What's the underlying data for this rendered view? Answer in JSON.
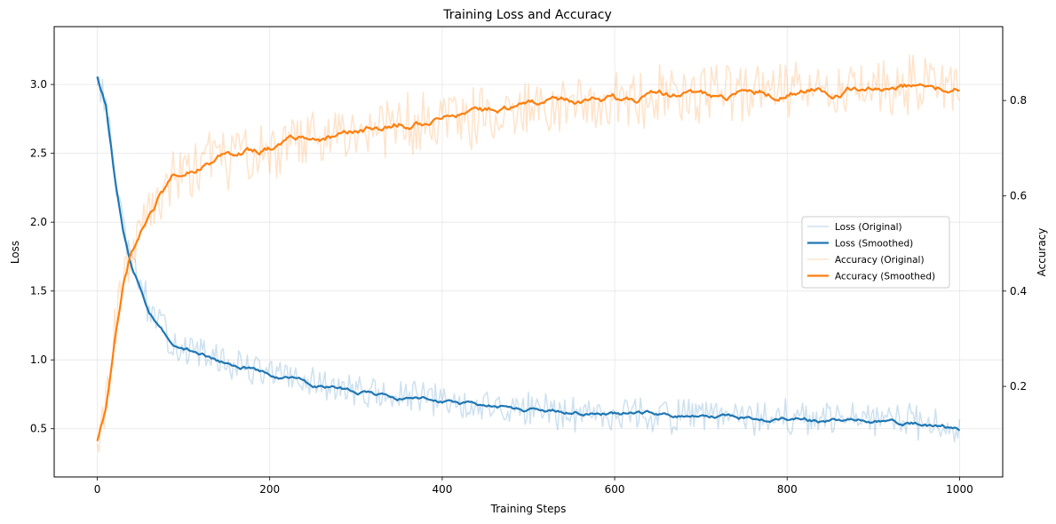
{
  "chart_data": {
    "type": "line",
    "title": "Training Loss and Accuracy",
    "xlabel": "Training Steps",
    "ylabel_left": "Loss",
    "ylabel_right": "Accuracy",
    "xlim": [
      -50,
      1050
    ],
    "ylim_left": [
      0.15,
      3.42
    ],
    "ylim_right": [
      0.01,
      0.955
    ],
    "x_ticks": [
      0,
      200,
      400,
      600,
      800,
      1000
    ],
    "y_ticks_left": [
      0.5,
      1.0,
      1.5,
      2.0,
      2.5,
      3.0
    ],
    "y_ticks_right": [
      0.2,
      0.4,
      0.6,
      0.8
    ],
    "grid": true,
    "legend_position": "center-right",
    "colors": {
      "loss": "#1f77b4",
      "accuracy": "#ff7f0e"
    },
    "series": [
      {
        "name": "Loss (Original)",
        "axis": "left",
        "style": "raw",
        "noise": 0.09,
        "x": [
          0,
          10,
          20,
          30,
          40,
          50,
          60,
          70,
          80,
          90,
          100,
          120,
          140,
          160,
          180,
          200,
          250,
          300,
          350,
          400,
          450,
          500,
          550,
          600,
          650,
          700,
          750,
          800,
          850,
          900,
          950,
          1000
        ],
        "y": [
          3.05,
          2.85,
          2.35,
          1.95,
          1.7,
          1.55,
          1.38,
          1.27,
          1.18,
          1.12,
          1.08,
          1.04,
          0.99,
          0.96,
          0.94,
          0.9,
          0.82,
          0.77,
          0.73,
          0.7,
          0.66,
          0.64,
          0.62,
          0.61,
          0.6,
          0.59,
          0.58,
          0.58,
          0.56,
          0.56,
          0.55,
          0.52
        ]
      },
      {
        "name": "Loss (Smoothed)",
        "axis": "left",
        "style": "smooth",
        "x": [
          0,
          10,
          20,
          30,
          40,
          50,
          60,
          70,
          80,
          90,
          100,
          120,
          140,
          160,
          180,
          200,
          250,
          300,
          350,
          400,
          450,
          500,
          550,
          600,
          650,
          700,
          750,
          800,
          850,
          900,
          950,
          1000
        ],
        "y": [
          3.05,
          2.85,
          2.35,
          1.95,
          1.7,
          1.55,
          1.38,
          1.27,
          1.18,
          1.12,
          1.08,
          1.04,
          0.99,
          0.96,
          0.94,
          0.9,
          0.82,
          0.77,
          0.73,
          0.7,
          0.66,
          0.64,
          0.62,
          0.61,
          0.6,
          0.59,
          0.58,
          0.58,
          0.56,
          0.56,
          0.55,
          0.51
        ]
      },
      {
        "name": "Accuracy (Original)",
        "axis": "right",
        "style": "raw",
        "noise": 0.045,
        "x": [
          0,
          10,
          20,
          30,
          40,
          50,
          60,
          70,
          80,
          90,
          100,
          120,
          140,
          160,
          180,
          200,
          250,
          300,
          350,
          400,
          450,
          500,
          550,
          600,
          650,
          700,
          750,
          800,
          850,
          900,
          950,
          1000
        ],
        "y": [
          0.09,
          0.16,
          0.3,
          0.42,
          0.49,
          0.53,
          0.57,
          0.6,
          0.62,
          0.64,
          0.65,
          0.66,
          0.68,
          0.68,
          0.69,
          0.7,
          0.72,
          0.74,
          0.75,
          0.76,
          0.77,
          0.79,
          0.8,
          0.8,
          0.81,
          0.81,
          0.82,
          0.82,
          0.82,
          0.83,
          0.83,
          0.83
        ]
      },
      {
        "name": "Accuracy (Smoothed)",
        "axis": "right",
        "style": "smooth",
        "x": [
          0,
          10,
          20,
          30,
          40,
          50,
          60,
          70,
          80,
          90,
          100,
          120,
          140,
          160,
          180,
          200,
          250,
          300,
          350,
          400,
          450,
          500,
          550,
          600,
          650,
          700,
          750,
          800,
          850,
          900,
          950,
          1000
        ],
        "y": [
          0.09,
          0.15,
          0.3,
          0.42,
          0.49,
          0.53,
          0.57,
          0.6,
          0.62,
          0.64,
          0.65,
          0.66,
          0.68,
          0.68,
          0.69,
          0.7,
          0.72,
          0.74,
          0.75,
          0.76,
          0.77,
          0.79,
          0.8,
          0.8,
          0.81,
          0.81,
          0.82,
          0.82,
          0.82,
          0.83,
          0.83,
          0.82
        ]
      }
    ]
  }
}
